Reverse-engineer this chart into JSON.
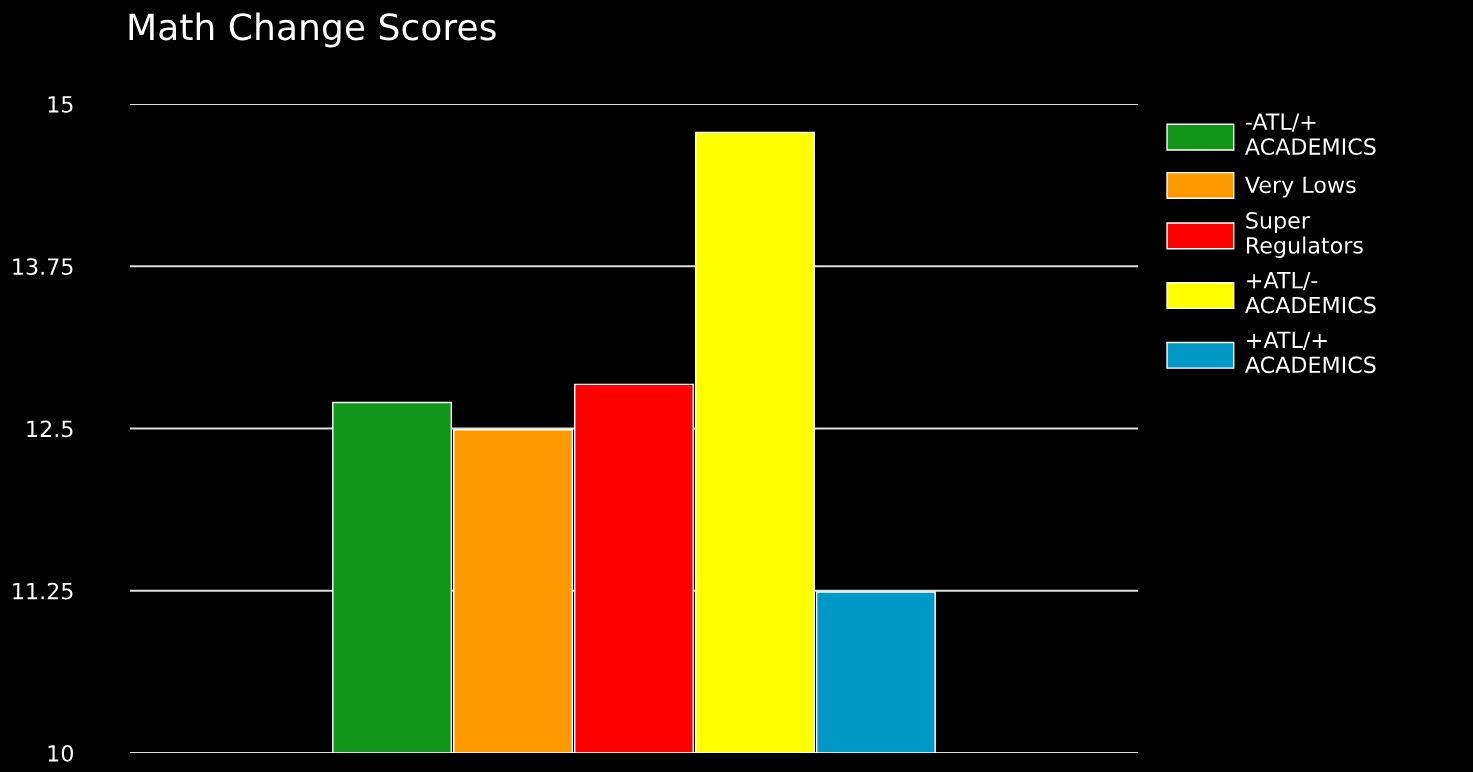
{
  "chart_data": {
    "type": "bar",
    "title": "Math Change Scores",
    "categories": [
      null
    ],
    "series": [
      {
        "name": "-ATL/+ ACADEMICS",
        "color": "#12961a",
        "values": [
          12.7
        ]
      },
      {
        "name": "Very Lows",
        "color": "#ff9900",
        "values": [
          12.49
        ]
      },
      {
        "name": "Super Regulators",
        "color": "#ff0000",
        "values": [
          12.84
        ]
      },
      {
        "name": "+ATL/- ACADEMICS",
        "color": "#ffff00",
        "values": [
          14.78
        ]
      },
      {
        "name": "+ATL/+ ACADEMICS",
        "color": "#0099c6",
        "values": [
          11.24
        ]
      }
    ],
    "ylim": [
      10,
      15
    ],
    "yticks": [
      10,
      11.25,
      12.5,
      13.75,
      15
    ],
    "grid": "y",
    "legend": "right",
    "tick_labels": "y"
  }
}
